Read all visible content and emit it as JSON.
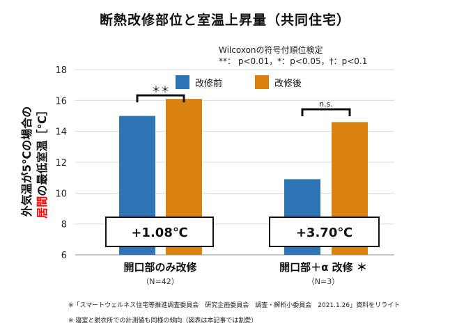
{
  "title": "断熱改修部位と室温上昇量（共同住宅）",
  "test_note": {
    "line1": "Wilcoxonの符号付順位検定",
    "line2": "**： p<0.01，*：p<0.05，†：p<0.1"
  },
  "ylabel": {
    "line1": "外気温が5℃の場合の",
    "line2_red": "居間",
    "line2_rest": "の最低室温［℃］"
  },
  "colors": {
    "before": "#2e75b6",
    "after": "#d9820f",
    "grid": "#d9d9d9",
    "axis": "#888888",
    "highlight": "#ff0000"
  },
  "chart_data": {
    "type": "bar",
    "categories": [
      "開口部のみ改修",
      "開口部＋α 改修 ＊"
    ],
    "category_notes": [
      "（N=42）",
      "（N=3）"
    ],
    "series": [
      {
        "name": "改修前",
        "values": [
          15.0,
          10.9
        ]
      },
      {
        "name": "改修後",
        "values": [
          16.1,
          14.6
        ]
      }
    ],
    "ylim": [
      6,
      18
    ],
    "yticks": [
      6,
      8,
      10,
      12,
      14,
      16,
      18
    ],
    "grid": true,
    "legend": "top",
    "significance": [
      "＊＊",
      "n.s."
    ],
    "differences": [
      "+1.08℃",
      "+3.70℃"
    ]
  },
  "footnotes": [
    "※「スマートウェルネス住宅等推進調査委員会　研究企画委員会　調査・解析小委員会　2021.1.26」資料をリライト",
    "※ 寝室と脱衣所での計測値も同様の傾向（図表は本記事では割愛）"
  ]
}
